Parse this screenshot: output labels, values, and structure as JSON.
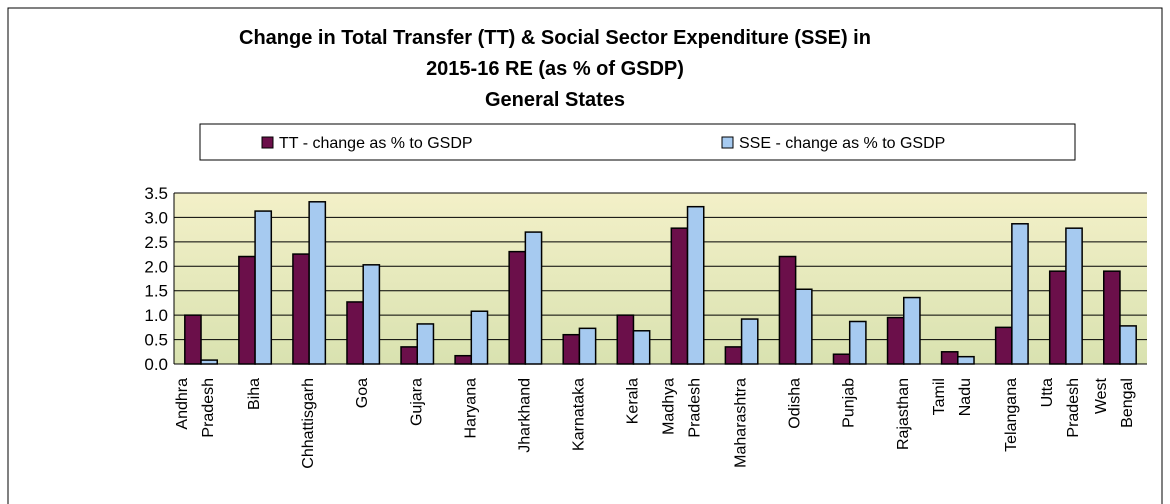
{
  "chart_data": {
    "type": "bar",
    "title": [
      "Change in Total Transfer (TT) & Social Sector Expenditure (SSE) in",
      "2015-16 RE (as % of GSDP)",
      "General States"
    ],
    "categories": [
      "Andhra Pradesh",
      "Biha",
      "Chhattisgarh",
      "Goa",
      "Gujara",
      "Haryana",
      "Jharkhand",
      "Karnataka",
      "Kerala",
      "Madhya Pradesh",
      "Maharashtra",
      "Odisha",
      "Punjab",
      "Rajasthan",
      "Tamil Nadu",
      "Telangana",
      "Utta Pradesh",
      "West Bengal"
    ],
    "series": [
      {
        "name": "TT - change as % to GSDP",
        "color": "#6b0f4a",
        "values": [
          1.0,
          2.2,
          2.25,
          1.27,
          0.35,
          0.17,
          2.3,
          0.6,
          1.0,
          2.78,
          0.35,
          2.2,
          0.2,
          0.95,
          0.25,
          0.75,
          1.9,
          1.9
        ]
      },
      {
        "name": "SSE - change as % to GSDP",
        "color": "#a6caf0",
        "values": [
          0.08,
          3.13,
          3.32,
          2.03,
          0.82,
          1.08,
          2.7,
          0.73,
          0.68,
          3.22,
          0.92,
          1.53,
          0.87,
          1.36,
          0.15,
          2.87,
          2.78,
          0.78
        ]
      }
    ],
    "ylim": [
      0,
      3.5
    ],
    "yticks": [
      {
        "value": 0,
        "label": "0.0"
      },
      0.5,
      {
        "value": 1,
        "label": "1.0"
      },
      1.5,
      {
        "value": 2,
        "label": "2.0"
      },
      2.5,
      {
        "value": 3,
        "label": "3.0"
      },
      3.5
    ],
    "grid": true
  }
}
